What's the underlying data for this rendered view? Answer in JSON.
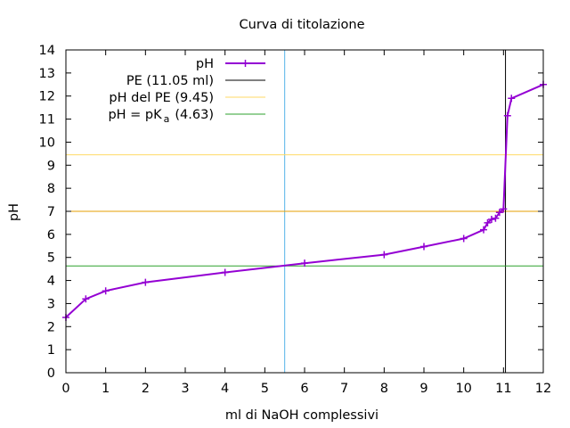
{
  "chart_data": {
    "type": "line",
    "title": "Curva di titolazione",
    "xlabel": "ml di NaOH complessivi",
    "ylabel": "pH",
    "xlim": [
      0,
      12
    ],
    "ylim": [
      0,
      14
    ],
    "x_ticks": [
      "0",
      "1",
      "2",
      "3",
      "4",
      "5",
      "6",
      "7",
      "8",
      "9",
      "10",
      "11",
      "12"
    ],
    "y_ticks": [
      "0",
      "1",
      "2",
      "3",
      "4",
      "5",
      "6",
      "7",
      "8",
      "9",
      "10",
      "11",
      "12",
      "13",
      "14"
    ],
    "grid": false,
    "legend_position": "top-left",
    "series": [
      {
        "name": "pH",
        "color": "#9400d3",
        "marker": "plus",
        "x": [
          0,
          0.5,
          1,
          2,
          4,
          6,
          8,
          9,
          10,
          10.5,
          10.6,
          10.7,
          10.8,
          10.9,
          11.0,
          11.1,
          11.2,
          12
        ],
        "y": [
          2.4,
          3.2,
          3.55,
          3.92,
          4.35,
          4.75,
          5.12,
          5.47,
          5.82,
          6.2,
          6.5,
          6.65,
          6.7,
          6.95,
          7.1,
          11.15,
          11.9,
          12.5
        ]
      }
    ],
    "reference_lines": [
      {
        "name": "PE (11.05 ml)",
        "orientation": "vertical",
        "value": 11.05,
        "color": "#000000"
      },
      {
        "name": "pH del PE (9.45)",
        "orientation": "horizontal",
        "value": 9.45,
        "color": "#ffd966"
      },
      {
        "name": "pH = pK",
        "name_subscript": "a",
        "name_suffix": "(4.63)",
        "orientation": "horizontal",
        "value": 4.63,
        "color": "#2ca02c"
      }
    ],
    "unlabeled_lines": [
      {
        "orientation": "vertical",
        "value": 5.5,
        "color": "#56b4e9"
      },
      {
        "orientation": "horizontal",
        "value": 7,
        "color": "#e69f00"
      }
    ]
  }
}
